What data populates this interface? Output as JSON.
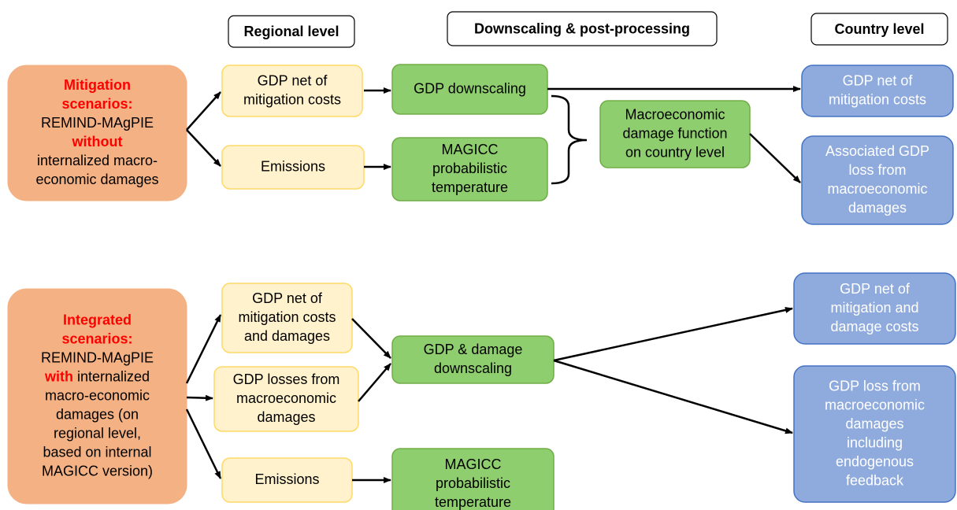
{
  "headers": [
    "Regional level",
    "Downscaling & post-processing",
    "Country level"
  ],
  "scenarios": [
    {
      "lines": [
        [
          {
            "text": "Mitigation",
            "emphasis": true
          }
        ],
        [
          {
            "text": "scenarios:",
            "emphasis": true
          }
        ],
        [
          {
            "text": "REMIND-MAgPIE"
          }
        ],
        [
          {
            "text": "without",
            "emphasis": true
          }
        ],
        [
          {
            "text": "internalized macro-"
          }
        ],
        [
          {
            "text": "economic damages"
          }
        ]
      ]
    },
    {
      "lines": [
        [
          {
            "text": "Integrated",
            "emphasis": true
          }
        ],
        [
          {
            "text": "scenarios:",
            "emphasis": true
          }
        ],
        [
          {
            "text": "REMIND-MAgPIE"
          }
        ],
        [
          {
            "text": "with",
            "emphasis": true
          },
          {
            "text": " internalized"
          }
        ],
        [
          {
            "text": "macro-economic"
          }
        ],
        [
          {
            "text": "damages (on"
          }
        ],
        [
          {
            "text": "regional level,"
          }
        ],
        [
          {
            "text": "based on internal"
          }
        ],
        [
          {
            "text": "MAGICC version)"
          }
        ]
      ]
    }
  ],
  "nodes": [
    {
      "kind": "regional",
      "lines": [
        "GDP net of",
        "mitigation costs"
      ]
    },
    {
      "kind": "regional",
      "lines": [
        "Emissions"
      ]
    },
    {
      "kind": "downscaling",
      "lines": [
        "GDP downscaling"
      ]
    },
    {
      "kind": "downscaling",
      "lines": [
        "MAGICC",
        "probabilistic",
        "temperature"
      ]
    },
    {
      "kind": "downscaling",
      "lines": [
        "Macroeconomic",
        "damage function",
        "on country level"
      ]
    },
    {
      "kind": "country",
      "lines": [
        "GDP net of",
        "mitigation costs"
      ]
    },
    {
      "kind": "country",
      "lines": [
        "Associated GDP",
        "loss from",
        "macroeconomic",
        "damages"
      ]
    },
    {
      "kind": "regional",
      "lines": [
        "GDP net of",
        "mitigation costs",
        "and damages"
      ]
    },
    {
      "kind": "regional",
      "lines": [
        "GDP losses from",
        "macroeconomic",
        "damages"
      ]
    },
    {
      "kind": "regional",
      "lines": [
        "Emissions"
      ]
    },
    {
      "kind": "downscaling",
      "lines": [
        "GDP & damage",
        "downscaling"
      ]
    },
    {
      "kind": "downscaling",
      "lines": [
        "MAGICC",
        "probabilistic",
        "temperature"
      ]
    },
    {
      "kind": "country",
      "lines": [
        "GDP net of",
        "mitigation and",
        "damage costs"
      ]
    },
    {
      "kind": "country",
      "lines": [
        "GDP loss from",
        "macroeconomic",
        "damages",
        "including",
        "endogenous",
        "feedback"
      ]
    }
  ]
}
